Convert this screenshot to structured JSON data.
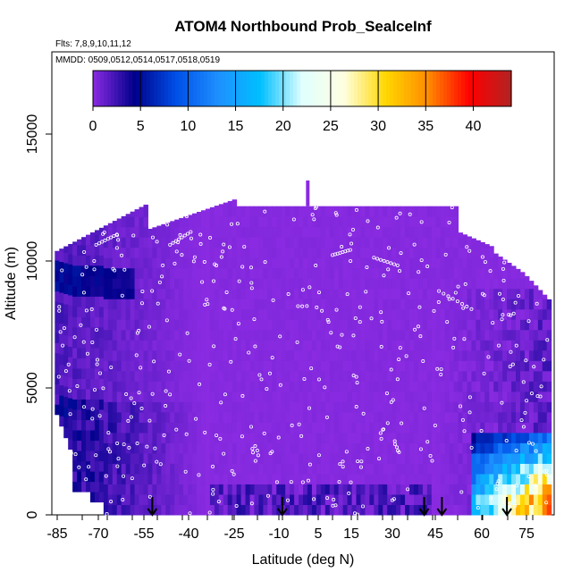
{
  "chart_data": {
    "type": "heatmap",
    "title": "ATOM4 Northbound Prob_SealceInf",
    "subtitle_flights": "Flts: 7,8,9,10,11,12",
    "subtitle_dates": "MMDD: 0509,0512,0514,0517,0518,0519",
    "xlabel": "Latitude (deg N)",
    "ylabel": "Altitude (m)",
    "x_tick_labels": [
      "-85",
      "-70",
      "-55",
      "-40",
      "-25",
      "-10",
      "5",
      "15",
      "30",
      "45",
      "60",
      "75"
    ],
    "y_tick_labels": [
      "0",
      "5000",
      "10000",
      "15000"
    ],
    "xlim": [
      -87,
      83
    ],
    "ylim": [
      0,
      18000
    ],
    "colorbar": {
      "range": [
        0,
        44
      ],
      "tick_labels": [
        "0",
        "5",
        "10",
        "15",
        "20",
        "25",
        "30",
        "35",
        "40"
      ],
      "colors": [
        "#8a2be2",
        "#00008b",
        "#0050e8",
        "#1e90ff",
        "#00bfff",
        "#e0ffff",
        "#ffffe0",
        "#ffd700",
        "#ff8c00",
        "#ff0000",
        "#b22222"
      ]
    },
    "flight_tracks_shown": true,
    "descent_arrow_latitudes": [
      -53,
      -9,
      39,
      45,
      67
    ],
    "dominant_value": 0,
    "high_probability_region": {
      "latitude_range": [
        55,
        82
      ],
      "altitude_range_m": [
        0,
        3200
      ],
      "max_value": 44
    },
    "moderate_region": {
      "latitude_range": [
        -87,
        -35
      ],
      "altitude_range_m": [
        0,
        10000
      ],
      "typical_value": 4
    }
  }
}
